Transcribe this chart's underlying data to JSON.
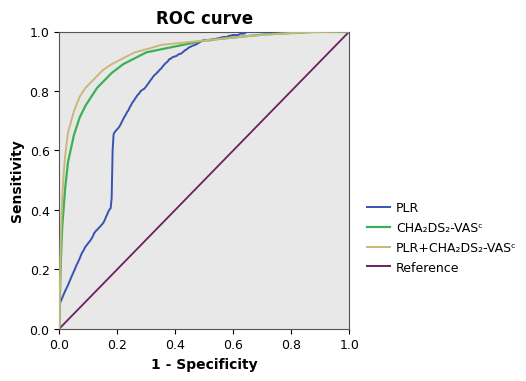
{
  "title": "ROC curve",
  "xlabel": "1 - Specificity",
  "ylabel": "Sensitivity",
  "xlim": [
    0.0,
    1.0
  ],
  "ylim": [
    0.0,
    1.0
  ],
  "xticks": [
    0.0,
    0.2,
    0.4,
    0.6,
    0.8,
    1.0
  ],
  "yticks": [
    0.0,
    0.2,
    0.4,
    0.6,
    0.8,
    1.0
  ],
  "bg_color": "#e8e8e8",
  "fig_bg_color": "#ffffff",
  "plr_color": "#3a52b0",
  "cha2ds2_color": "#3cb055",
  "combined_color": "#c8b87a",
  "ref_color": "#6b2060",
  "legend_labels_display": [
    "PLR",
    "CHA₂DS₂-VASᶜ",
    "PLR+CHA₂DS₂-VASᶜ",
    "Reference"
  ],
  "title_fontsize": 12,
  "axis_label_fontsize": 10,
  "tick_fontsize": 9,
  "legend_fontsize": 9,
  "plr_fpr": [
    0.0,
    0.01,
    0.02,
    0.03,
    0.04,
    0.05,
    0.06,
    0.07,
    0.08,
    0.09,
    0.1,
    0.11,
    0.12,
    0.13,
    0.14,
    0.15,
    0.16,
    0.17,
    0.18,
    0.185,
    0.19,
    0.2,
    0.21,
    0.22,
    0.24,
    0.26,
    0.28,
    0.3,
    0.32,
    0.34,
    0.36,
    0.38,
    0.4,
    0.43,
    0.46,
    0.5,
    0.55,
    0.6,
    0.65,
    0.7,
    0.75,
    0.8,
    0.85,
    0.9,
    0.95,
    1.0
  ],
  "plr_tpr": [
    0.08,
    0.1,
    0.12,
    0.14,
    0.16,
    0.18,
    0.2,
    0.22,
    0.24,
    0.26,
    0.27,
    0.28,
    0.3,
    0.31,
    0.32,
    0.33,
    0.35,
    0.37,
    0.38,
    0.62,
    0.63,
    0.64,
    0.65,
    0.67,
    0.7,
    0.73,
    0.75,
    0.77,
    0.8,
    0.82,
    0.84,
    0.86,
    0.87,
    0.88,
    0.89,
    0.9,
    0.91,
    0.92,
    0.93,
    0.95,
    0.96,
    0.97,
    0.975,
    0.985,
    0.993,
    1.0
  ],
  "cha2ds2_fpr": [
    0.0,
    0.005,
    0.01,
    0.02,
    0.03,
    0.05,
    0.07,
    0.09,
    0.11,
    0.13,
    0.15,
    0.18,
    0.22,
    0.26,
    0.3,
    0.35,
    0.4,
    0.5,
    0.6,
    0.7,
    0.8,
    0.9,
    1.0
  ],
  "cha2ds2_tpr": [
    0.0,
    0.22,
    0.34,
    0.47,
    0.56,
    0.65,
    0.71,
    0.75,
    0.78,
    0.81,
    0.83,
    0.86,
    0.89,
    0.91,
    0.93,
    0.94,
    0.95,
    0.97,
    0.98,
    0.99,
    0.995,
    1.0,
    1.0
  ],
  "combined_fpr": [
    0.0,
    0.005,
    0.01,
    0.015,
    0.02,
    0.03,
    0.05,
    0.07,
    0.09,
    0.11,
    0.13,
    0.15,
    0.18,
    0.22,
    0.26,
    0.3,
    0.35,
    0.45,
    0.55,
    0.65,
    0.75,
    0.85,
    1.0
  ],
  "combined_tpr": [
    0.0,
    0.3,
    0.44,
    0.52,
    0.58,
    0.66,
    0.73,
    0.78,
    0.81,
    0.83,
    0.85,
    0.87,
    0.89,
    0.91,
    0.93,
    0.94,
    0.955,
    0.965,
    0.975,
    0.985,
    0.992,
    0.998,
    1.0
  ]
}
